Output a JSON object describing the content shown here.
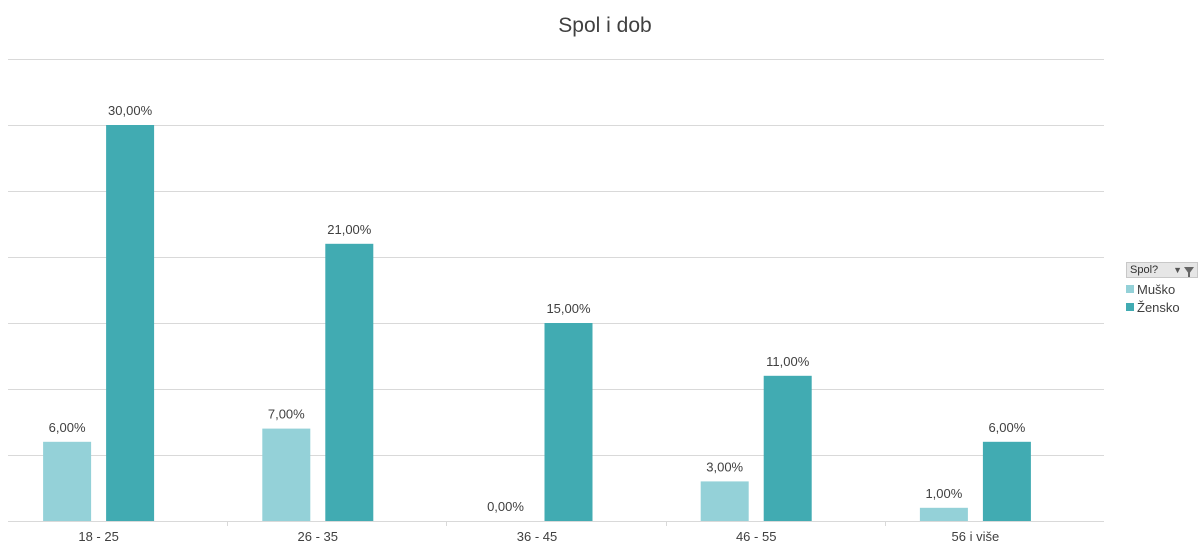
{
  "chart_data": {
    "type": "bar",
    "title": "Spol i dob",
    "categories": [
      "18 - 25",
      "26 - 35",
      "36 - 45",
      "46 - 55",
      "56 i više"
    ],
    "series": [
      {
        "name": "Muško",
        "color": "#94d1d8",
        "values": [
          6,
          7,
          0,
          3,
          1
        ],
        "labels": [
          "6,00%",
          "7,00%",
          "0,00%",
          "3,00%",
          "1,00%"
        ]
      },
      {
        "name": "Žensko",
        "color": "#41abb2",
        "values": [
          30,
          21,
          15,
          11,
          6
        ],
        "labels": [
          "30,00%",
          "21,00%",
          "15,00%",
          "11,00%",
          "6,00%"
        ]
      }
    ],
    "ylim": [
      0,
      35
    ],
    "y_gridline_step": 5,
    "y_tick_labels_visible": false,
    "grid": true,
    "legend": {
      "title": "Spol?",
      "position": "right"
    }
  }
}
